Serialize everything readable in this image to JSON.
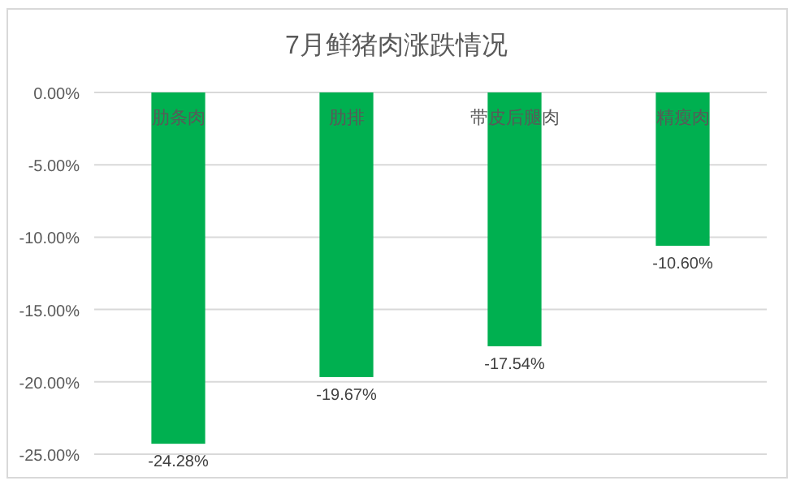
{
  "chart_data": {
    "type": "bar",
    "title": "7月鲜猪肉涨跌情况",
    "categories": [
      "肋条肉",
      "肋排",
      "带皮后腿肉",
      "精瘦肉"
    ],
    "values": [
      -24.28,
      -19.67,
      -17.54,
      -10.6
    ],
    "value_labels": [
      "-24.28%",
      "-19.67%",
      "-17.54%",
      "-10.60%"
    ],
    "color": "#00b050",
    "ylim": [
      -25,
      0
    ],
    "yticks": [
      {
        "value": 0,
        "label": "0.00%"
      },
      {
        "value": -5,
        "label": "-5.00%"
      },
      {
        "value": -10,
        "label": "-10.00%"
      },
      {
        "value": -15,
        "label": "-15.00%"
      },
      {
        "value": -20,
        "label": "-20.00%"
      },
      {
        "value": -25,
        "label": "-25.00%"
      }
    ],
    "grid": "y"
  }
}
